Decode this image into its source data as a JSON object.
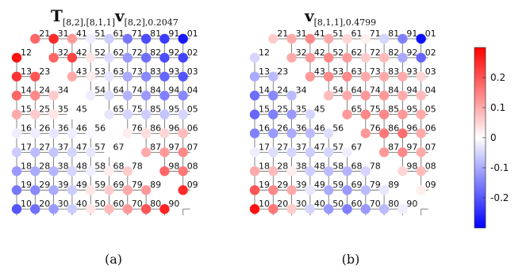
{
  "panels": [
    {
      "title": {
        "main": "T",
        "main_sub": "[8,2],[8,1,1]",
        "sec": "v",
        "sec_sub": "[8,2],0.2047"
      },
      "caption": "(a)",
      "nodes": [
        {
          "label": "21",
          "value": 0.18
        },
        {
          "label": "31",
          "value": 0.25
        },
        {
          "label": "41",
          "value": 0.12
        },
        {
          "label": "51",
          "value": -0.02
        },
        {
          "label": "61",
          "value": -0.06
        },
        {
          "label": "71",
          "value": -0.16
        },
        {
          "label": "81",
          "value": -0.21
        },
        {
          "label": "91",
          "value": -0.23
        },
        {
          "label": "01",
          "value": -0.27
        },
        {
          "label": "12",
          "value": 0.28
        },
        {
          "label": "32",
          "value": 0.18
        },
        {
          "label": "42",
          "value": 0.22
        },
        {
          "label": "52",
          "value": 0.03
        },
        {
          "label": "62",
          "value": -0.04
        },
        {
          "label": "72",
          "value": -0.12
        },
        {
          "label": "82",
          "value": -0.17
        },
        {
          "label": "92",
          "value": -0.21
        },
        {
          "label": "02",
          "value": -0.22
        },
        {
          "label": "13",
          "value": 0.24
        },
        {
          "label": "23",
          "value": 0.2
        },
        {
          "label": "43",
          "value": 0.1
        },
        {
          "label": "53",
          "value": 0.02
        },
        {
          "label": "63",
          "value": -0.03
        },
        {
          "label": "73",
          "value": -0.1
        },
        {
          "label": "83",
          "value": -0.14
        },
        {
          "label": "93",
          "value": -0.18
        },
        {
          "label": "03",
          "value": -0.2
        },
        {
          "label": "14",
          "value": 0.18
        },
        {
          "label": "24",
          "value": 0.14
        },
        {
          "label": "34",
          "value": 0.06
        },
        {
          "label": "54",
          "value": -0.02
        },
        {
          "label": "64",
          "value": -0.04
        },
        {
          "label": "74",
          "value": -0.09
        },
        {
          "label": "84",
          "value": -0.12
        },
        {
          "label": "94",
          "value": -0.15
        },
        {
          "label": "04",
          "value": -0.14
        },
        {
          "label": "15",
          "value": 0.1
        },
        {
          "label": "25",
          "value": 0.06
        },
        {
          "label": "35",
          "value": 0.03
        },
        {
          "label": "45",
          "value": 0.0
        },
        {
          "label": "65",
          "value": -0.03
        },
        {
          "label": "75",
          "value": -0.05
        },
        {
          "label": "85",
          "value": -0.06
        },
        {
          "label": "95",
          "value": -0.07
        },
        {
          "label": "05",
          "value": -0.05
        },
        {
          "label": "16",
          "value": -0.02
        },
        {
          "label": "26",
          "value": -0.02
        },
        {
          "label": "36",
          "value": -0.03
        },
        {
          "label": "46",
          "value": -0.02
        },
        {
          "label": "56",
          "value": -0.01
        },
        {
          "label": "76",
          "value": 0.02
        },
        {
          "label": "86",
          "value": 0.04
        },
        {
          "label": "96",
          "value": 0.05
        },
        {
          "label": "06",
          "value": 0.08
        },
        {
          "label": "17",
          "value": -0.06
        },
        {
          "label": "27",
          "value": -0.08
        },
        {
          "label": "37",
          "value": -0.07
        },
        {
          "label": "47",
          "value": -0.05
        },
        {
          "label": "57",
          "value": -0.03
        },
        {
          "label": "67",
          "value": 0.0
        },
        {
          "label": "87",
          "value": 0.1
        },
        {
          "label": "97",
          "value": 0.12
        },
        {
          "label": "07",
          "value": 0.14
        },
        {
          "label": "18",
          "value": -0.12
        },
        {
          "label": "28",
          "value": -0.1
        },
        {
          "label": "38",
          "value": -0.09
        },
        {
          "label": "48",
          "value": -0.05
        },
        {
          "label": "58",
          "value": -0.02
        },
        {
          "label": "68",
          "value": 0.02
        },
        {
          "label": "78",
          "value": 0.06
        },
        {
          "label": "98",
          "value": 0.18
        },
        {
          "label": "08",
          "value": 0.16
        },
        {
          "label": "19",
          "value": -0.16
        },
        {
          "label": "29",
          "value": -0.14
        },
        {
          "label": "39",
          "value": -0.1
        },
        {
          "label": "49",
          "value": -0.06
        },
        {
          "label": "59",
          "value": 0.03
        },
        {
          "label": "69",
          "value": 0.06
        },
        {
          "label": "79",
          "value": 0.1
        },
        {
          "label": "89",
          "value": 0.12
        },
        {
          "label": "09",
          "value": 0.25
        },
        {
          "label": "10",
          "value": -0.2
        },
        {
          "label": "20",
          "value": -0.17
        },
        {
          "label": "30",
          "value": -0.12
        },
        {
          "label": "40",
          "value": -0.06
        },
        {
          "label": "50",
          "value": 0.03
        },
        {
          "label": "60",
          "value": 0.08
        },
        {
          "label": "70",
          "value": 0.12
        },
        {
          "label": "80",
          "value": 0.2
        },
        {
          "label": "90",
          "value": 0.26
        }
      ]
    },
    {
      "title": {
        "main": "v",
        "main_sub": "[8,1,1],0.4799",
        "sec": "",
        "sec_sub": ""
      },
      "caption": "(b)",
      "nodes": [
        {
          "label": "21",
          "value": 0.06
        },
        {
          "label": "31",
          "value": 0.1
        },
        {
          "label": "41",
          "value": 0.14
        },
        {
          "label": "51",
          "value": 0.1
        },
        {
          "label": "61",
          "value": 0.05
        },
        {
          "label": "71",
          "value": 0.02
        },
        {
          "label": "81",
          "value": -0.05
        },
        {
          "label": "91",
          "value": -0.15
        },
        {
          "label": "01",
          "value": -0.28
        },
        {
          "label": "12",
          "value": -0.05
        },
        {
          "label": "32",
          "value": 0.1
        },
        {
          "label": "42",
          "value": 0.12
        },
        {
          "label": "52",
          "value": 0.14
        },
        {
          "label": "62",
          "value": 0.12
        },
        {
          "label": "72",
          "value": 0.06
        },
        {
          "label": "82",
          "value": 0.08
        },
        {
          "label": "92",
          "value": -0.1
        },
        {
          "label": "02",
          "value": -0.18
        },
        {
          "label": "13",
          "value": -0.1
        },
        {
          "label": "23",
          "value": -0.08
        },
        {
          "label": "43",
          "value": 0.12
        },
        {
          "label": "53",
          "value": 0.14
        },
        {
          "label": "63",
          "value": 0.14
        },
        {
          "label": "73",
          "value": 0.1
        },
        {
          "label": "83",
          "value": 0.1
        },
        {
          "label": "93",
          "value": 0.1
        },
        {
          "label": "03",
          "value": 0.05
        },
        {
          "label": "14",
          "value": -0.17
        },
        {
          "label": "24",
          "value": -0.14
        },
        {
          "label": "34",
          "value": -0.08
        },
        {
          "label": "54",
          "value": 0.08
        },
        {
          "label": "64",
          "value": 0.1
        },
        {
          "label": "74",
          "value": 0.12
        },
        {
          "label": "84",
          "value": 0.12
        },
        {
          "label": "94",
          "value": 0.1
        },
        {
          "label": "04",
          "value": 0.08
        },
        {
          "label": "15",
          "value": -0.18
        },
        {
          "label": "25",
          "value": -0.15
        },
        {
          "label": "35",
          "value": -0.12
        },
        {
          "label": "45",
          "value": -0.05
        },
        {
          "label": "65",
          "value": 0.12
        },
        {
          "label": "75",
          "value": 0.14
        },
        {
          "label": "85",
          "value": 0.14
        },
        {
          "label": "95",
          "value": 0.12
        },
        {
          "label": "05",
          "value": 0.1
        },
        {
          "label": "16",
          "value": -0.15
        },
        {
          "label": "26",
          "value": -0.12
        },
        {
          "label": "36",
          "value": -0.1
        },
        {
          "label": "46",
          "value": -0.08
        },
        {
          "label": "56",
          "value": -0.04
        },
        {
          "label": "76",
          "value": 0.12
        },
        {
          "label": "86",
          "value": 0.16
        },
        {
          "label": "96",
          "value": 0.17
        },
        {
          "label": "06",
          "value": 0.1
        },
        {
          "label": "17",
          "value": -0.02
        },
        {
          "label": "27",
          "value": -0.04
        },
        {
          "label": "37",
          "value": -0.05
        },
        {
          "label": "47",
          "value": -0.06
        },
        {
          "label": "57",
          "value": -0.05
        },
        {
          "label": "67",
          "value": -0.02
        },
        {
          "label": "87",
          "value": 0.12
        },
        {
          "label": "97",
          "value": 0.14
        },
        {
          "label": "07",
          "value": 0.1
        },
        {
          "label": "18",
          "value": 0.1
        },
        {
          "label": "28",
          "value": 0.08
        },
        {
          "label": "38",
          "value": 0.02
        },
        {
          "label": "48",
          "value": -0.06
        },
        {
          "label": "58",
          "value": -0.08
        },
        {
          "label": "68",
          "value": -0.09
        },
        {
          "label": "78",
          "value": -0.05
        },
        {
          "label": "98",
          "value": 0.05
        },
        {
          "label": "08",
          "value": 0.08
        },
        {
          "label": "19",
          "value": 0.2
        },
        {
          "label": "29",
          "value": 0.14
        },
        {
          "label": "39",
          "value": 0.1
        },
        {
          "label": "49",
          "value": -0.03
        },
        {
          "label": "59",
          "value": -0.1
        },
        {
          "label": "69",
          "value": -0.12
        },
        {
          "label": "79",
          "value": -0.08
        },
        {
          "label": "89",
          "value": -0.03
        },
        {
          "label": "09",
          "value": 0.02
        },
        {
          "label": "10",
          "value": 0.28
        },
        {
          "label": "20",
          "value": 0.16
        },
        {
          "label": "30",
          "value": 0.06
        },
        {
          "label": "40",
          "value": -0.05
        },
        {
          "label": "50",
          "value": -0.12
        },
        {
          "label": "60",
          "value": -0.15
        },
        {
          "label": "70",
          "value": -0.12
        },
        {
          "label": "80",
          "value": -0.08
        },
        {
          "label": "90",
          "value": -0.02
        }
      ]
    }
  ],
  "colorbar": {
    "ticks": [
      "0.2",
      "0.1",
      "0",
      "-0.1",
      "-0.2"
    ],
    "tick_values": [
      0.2,
      0.1,
      0,
      -0.1,
      -0.2
    ],
    "range": [
      -0.3,
      0.3
    ],
    "colors": {
      "positive": "#ff0000",
      "zero": "#ffffff",
      "negative": "#0000ff"
    }
  }
}
